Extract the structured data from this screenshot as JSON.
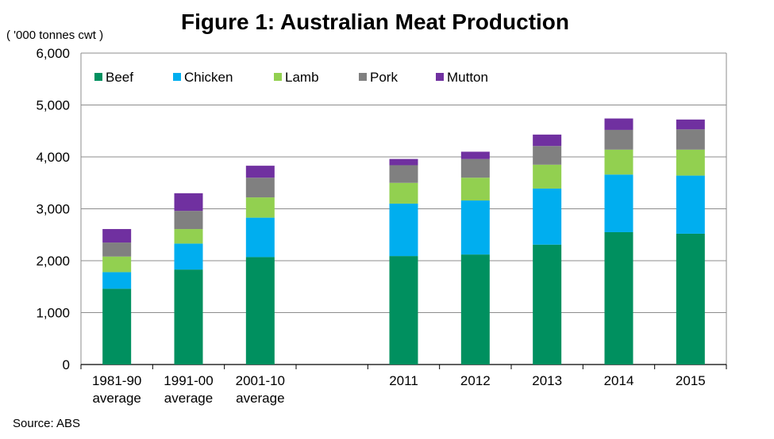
{
  "chart_data": {
    "type": "bar",
    "stacked": true,
    "title": "Figure 1: Australian Meat Production",
    "y_unit_label": "( '000 tonnes cwt )",
    "source": "Source: ABS",
    "ylim": [
      0,
      6000
    ],
    "yticks": [
      "0",
      "1,000",
      "2,000",
      "3,000",
      "4,000",
      "5,000",
      "6,000"
    ],
    "ytick_values": [
      0,
      1000,
      2000,
      3000,
      4000,
      5000,
      6000
    ],
    "grid": true,
    "legend_position": "top-left",
    "categories": [
      [
        "1981-90",
        "average"
      ],
      [
        "1991-00",
        "average"
      ],
      [
        "2001-10",
        "average"
      ],
      [
        ""
      ],
      [
        "2011"
      ],
      [
        "2012"
      ],
      [
        "2013"
      ],
      [
        "2014"
      ],
      [
        "2015"
      ]
    ],
    "series": [
      {
        "name": "Beef",
        "color": "#00905f",
        "values": [
          1460,
          1830,
          2070,
          null,
          2090,
          2120,
          2310,
          2550,
          2520
        ]
      },
      {
        "name": "Chicken",
        "color": "#00aeef",
        "values": [
          320,
          500,
          760,
          null,
          1010,
          1040,
          1080,
          1110,
          1120
        ]
      },
      {
        "name": "Lamb",
        "color": "#92d050",
        "values": [
          300,
          280,
          390,
          null,
          400,
          440,
          460,
          480,
          500
        ]
      },
      {
        "name": "Pork",
        "color": "#808080",
        "values": [
          270,
          350,
          380,
          null,
          340,
          360,
          360,
          380,
          390
        ]
      },
      {
        "name": "Mutton",
        "color": "#7030a0",
        "values": [
          260,
          340,
          230,
          null,
          120,
          140,
          220,
          220,
          190
        ]
      }
    ]
  }
}
